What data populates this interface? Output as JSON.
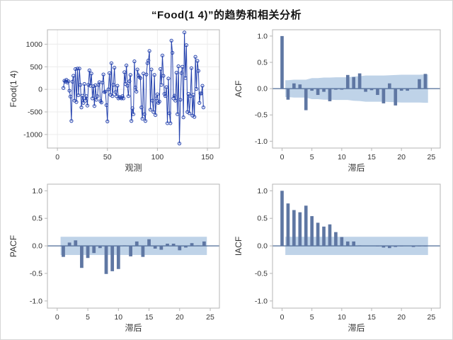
{
  "title": "“Food(1 4)”的趋势和相关分析",
  "colors": {
    "series_line": "#2643ae",
    "bar_fill": "#5f77a3",
    "band_fill": "#bfd3e8",
    "zero_line": "#4d6a96",
    "frame": "#b5b5b5",
    "grid": "#ececec",
    "text": "#333333",
    "title_text": "#141414"
  },
  "chart_data": [
    {
      "id": "series",
      "type": "line",
      "title": "",
      "xlabel": "观测",
      "ylabel": "Food(1 4)",
      "xlim": [
        -10,
        162
      ],
      "ylim": [
        -1300,
        1320
      ],
      "xticks": [
        0,
        50,
        100,
        150
      ],
      "xtick_labels": [
        "0",
        "50",
        "100",
        "150"
      ],
      "yticks": [
        1000,
        500,
        0,
        -500,
        -1000
      ],
      "ytick_labels": [
        "1000",
        "500",
        "0",
        "-500",
        "-1000"
      ],
      "grid": true,
      "marker": "open-circle",
      "x_start": 6,
      "y": [
        30,
        190,
        170,
        210,
        150,
        180,
        -30,
        -160,
        -700,
        170,
        300,
        -250,
        450,
        -280,
        460,
        -130,
        460,
        100,
        -400,
        -140,
        -300,
        120,
        -250,
        -150,
        -360,
        100,
        420,
        80,
        350,
        -200,
        70,
        -370,
        90,
        -230,
        -150,
        100,
        160,
        -260,
        -290,
        150,
        330,
        -60,
        -50,
        -350,
        -710,
        0,
        360,
        -120,
        580,
        -150,
        100,
        480,
        -60,
        -150,
        80,
        -200,
        -170,
        -180,
        -200,
        -150,
        -200,
        380,
        120,
        530,
        80,
        -150,
        180,
        320,
        -700,
        -420,
        -550,
        620,
        40,
        -50,
        440,
        310,
        270,
        250,
        -400,
        -650,
        350,
        -550,
        -700,
        330,
        580,
        640,
        850,
        -450,
        440,
        -250,
        -500,
        320,
        -570,
        -200,
        -110,
        -300,
        -270,
        450,
        100,
        750,
        300,
        -100,
        -150,
        50,
        -750,
        240,
        -530,
        -750,
        1080,
        810,
        -200,
        -140,
        -250,
        370,
        -550,
        510,
        -1200,
        -230,
        360,
        500,
        -620,
        1260,
        250,
        980,
        -500,
        -100,
        -530,
        -150,
        470,
        -580,
        -120,
        -610,
        720,
        10,
        630,
        410,
        -300,
        -90,
        -90,
        80,
        -400
      ]
    },
    {
      "id": "acf",
      "type": "bar",
      "title": "",
      "xlabel": "滞后",
      "ylabel": "ACF",
      "xlim": [
        -1.6,
        26.5
      ],
      "ylim": [
        -1.13,
        1.12
      ],
      "xticks": [
        0,
        5,
        10,
        15,
        20,
        25
      ],
      "xtick_labels": [
        "0",
        "5",
        "10",
        "15",
        "20",
        "25"
      ],
      "yticks": [
        1,
        0.5,
        0,
        -0.5,
        -1
      ],
      "ytick_labels": [
        "1.0",
        "0.5",
        "0.0",
        "-0.5",
        "-1.0"
      ],
      "grid": false,
      "lag_start": 0,
      "values": [
        1.0,
        -0.21,
        0.1,
        0.08,
        -0.41,
        -0.04,
        -0.12,
        -0.06,
        -0.24,
        -0.02,
        -0.02,
        0.26,
        0.22,
        0.29,
        -0.06,
        -0.03,
        -0.12,
        -0.28,
        0.1,
        -0.32,
        -0.04,
        -0.04,
        0.01,
        0.18,
        0.28
      ],
      "band": {
        "start_lag": 1,
        "upper": [
          0.16,
          0.17,
          0.17,
          0.17,
          0.2,
          0.2,
          0.21,
          0.21,
          0.215,
          0.215,
          0.215,
          0.23,
          0.235,
          0.25,
          0.25,
          0.25,
          0.25,
          0.255,
          0.26,
          0.265,
          0.265,
          0.265,
          0.265,
          0.27
        ]
      }
    },
    {
      "id": "pacf",
      "type": "bar",
      "title": "",
      "xlabel": "滞后",
      "ylabel": "PACF",
      "xlim": [
        -1.6,
        26.5
      ],
      "ylim": [
        -1.13,
        1.12
      ],
      "xticks": [
        0,
        5,
        10,
        15,
        20,
        25
      ],
      "xtick_labels": [
        "0",
        "5",
        "10",
        "15",
        "20",
        "25"
      ],
      "yticks": [
        1,
        0.5,
        0,
        -0.5,
        -1
      ],
      "ytick_labels": [
        "1.0",
        "0.5",
        "0.0",
        "-0.5",
        "-1.0"
      ],
      "grid": false,
      "lag_start": 1,
      "values": [
        -0.2,
        0.06,
        0.1,
        -0.4,
        -0.22,
        -0.13,
        -0.04,
        -0.51,
        -0.46,
        -0.42,
        0.01,
        -0.19,
        0.08,
        -0.2,
        0.12,
        -0.05,
        -0.07,
        0.04,
        0.04,
        -0.08,
        -0.03,
        0.05,
        0.01,
        0.08
      ],
      "band": {
        "start_lag": 1,
        "upper": [
          0.165,
          0.165,
          0.165,
          0.165,
          0.165,
          0.165,
          0.165,
          0.165,
          0.165,
          0.165,
          0.165,
          0.165,
          0.165,
          0.165,
          0.165,
          0.165,
          0.165,
          0.165,
          0.165,
          0.165,
          0.165,
          0.165,
          0.165,
          0.165
        ]
      }
    },
    {
      "id": "iacf",
      "type": "bar",
      "title": "",
      "xlabel": "滞后",
      "ylabel": "IACF",
      "xlim": [
        -1.6,
        26.5
      ],
      "ylim": [
        -1.13,
        1.12
      ],
      "xticks": [
        0,
        5,
        10,
        15,
        20,
        25
      ],
      "xtick_labels": [
        "0",
        "5",
        "10",
        "15",
        "20",
        "25"
      ],
      "yticks": [
        1,
        0.5,
        0,
        -0.5,
        -1
      ],
      "ytick_labels": [
        "1.0",
        "0.5",
        "0.0",
        "-0.5",
        "-1.0"
      ],
      "grid": false,
      "lag_start": 0,
      "values": [
        1.0,
        0.77,
        0.65,
        0.61,
        0.73,
        0.54,
        0.42,
        0.35,
        0.39,
        0.25,
        0.16,
        0.08,
        0.08,
        0.01,
        0.0,
        0.0,
        -0.01,
        -0.03,
        -0.04,
        -0.02,
        -0.01,
        0.0,
        -0.02,
        -0.01,
        -0.01
      ],
      "band": {
        "start_lag": 1,
        "upper": [
          0.165,
          0.165,
          0.165,
          0.165,
          0.165,
          0.165,
          0.165,
          0.165,
          0.165,
          0.165,
          0.165,
          0.165,
          0.165,
          0.165,
          0.165,
          0.165,
          0.165,
          0.165,
          0.165,
          0.165,
          0.165,
          0.165,
          0.165,
          0.165
        ]
      }
    }
  ]
}
